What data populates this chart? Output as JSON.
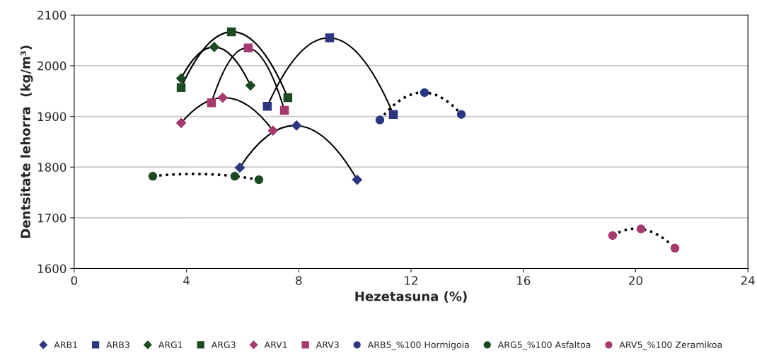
{
  "chart_data": {
    "type": "line",
    "xlabel": "Hezetasuna (%)",
    "ylabel": "Dentsitate lehorra  (kg/m³)",
    "xlim": [
      0,
      24
    ],
    "xticks": [
      0,
      4,
      8,
      12,
      16,
      20,
      24
    ],
    "ylim": [
      1600,
      2100
    ],
    "yticks": [
      1600,
      1700,
      1800,
      1900,
      2000,
      2100
    ],
    "grid": "y",
    "legend": "bottom",
    "series": [
      {
        "name": "ARB1",
        "color": "#2b3580",
        "marker": "diamond",
        "line_style": "solid",
        "x": [
          5.9,
          7.92,
          10.08
        ],
        "values": [
          1799,
          1882,
          1775
        ]
      },
      {
        "name": "ARB3",
        "color": "#2b3580",
        "marker": "square",
        "line_style": "solid",
        "x": [
          6.88,
          9.1,
          11.37
        ],
        "values": [
          1920,
          2055,
          1904
        ]
      },
      {
        "name": "ARG1",
        "color": "#1d4a22",
        "marker": "diamond",
        "line_style": "solid",
        "x": [
          3.81,
          4.99,
          6.28
        ],
        "values": [
          1975,
          2037,
          1961
        ]
      },
      {
        "name": "ARG3",
        "color": "#1d4a22",
        "marker": "square",
        "line_style": "solid",
        "x": [
          3.81,
          5.6,
          7.61
        ],
        "values": [
          1957,
          2067,
          1937
        ]
      },
      {
        "name": "ARV1",
        "color": "#a6396e",
        "marker": "diamond",
        "line_style": "solid",
        "x": [
          3.81,
          5.29,
          7.08
        ],
        "values": [
          1887,
          1937,
          1872
        ]
      },
      {
        "name": "ARV3",
        "color": "#a6396e",
        "marker": "square",
        "line_style": "solid",
        "x": [
          4.89,
          6.2,
          7.49
        ],
        "values": [
          1927,
          2035,
          1912
        ]
      },
      {
        "name": "ARB5_%100 Hormigoia",
        "color": "#2b3580",
        "marker": "circle",
        "line_style": "dotted",
        "x": [
          10.89,
          12.48,
          13.79
        ],
        "values": [
          1893,
          1947,
          1904
        ]
      },
      {
        "name": "ARG5_%100 Asfaltoa",
        "color": "#1d4a22",
        "marker": "circle",
        "line_style": "dotted",
        "x": [
          2.8,
          5.72,
          6.58
        ],
        "values": [
          1782,
          1782,
          1775
        ]
      },
      {
        "name": "ARV5_%100 Zeramikoa",
        "color": "#a6396e",
        "marker": "circle",
        "line_style": "dotted",
        "x": [
          19.18,
          20.19,
          21.4
        ],
        "values": [
          1665,
          1678,
          1640
        ]
      }
    ]
  }
}
